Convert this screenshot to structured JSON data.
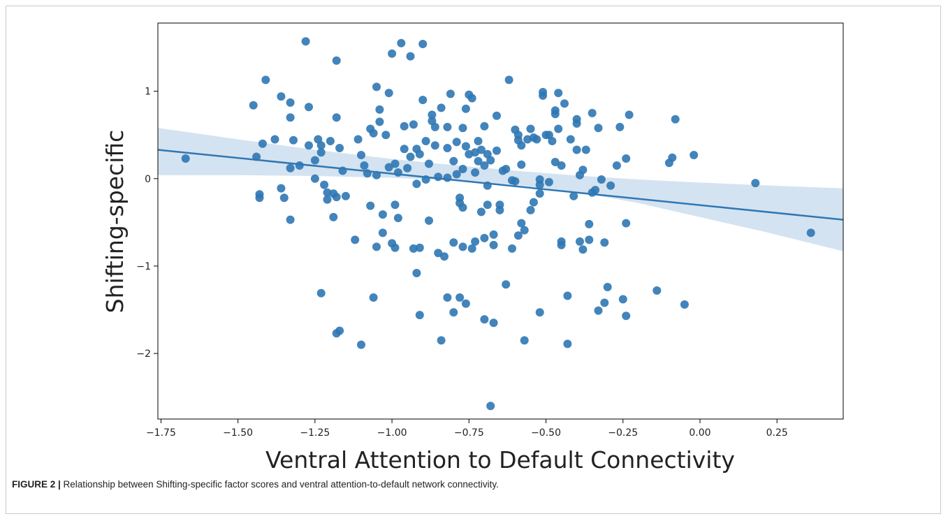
{
  "figure": {
    "caption_label": "FIGURE 2 |",
    "caption_text": " Relationship between Shifting-specific factor scores and ventral attention-to-default network connectivity."
  },
  "colors": {
    "point": "#2f77b4",
    "line": "#2f77b4",
    "band": "#c6d9ec"
  },
  "chart_data": {
    "type": "scatter",
    "xlabel": "Ventral Attention to Default Connectivity",
    "ylabel": "Shifting-specific",
    "xlim": [
      -1.76,
      0.465
    ],
    "ylim": [
      -2.75,
      1.78
    ],
    "xticks": [
      -1.75,
      -1.5,
      -1.25,
      -1.0,
      -0.75,
      -0.5,
      -0.25,
      0.0,
      0.25
    ],
    "xtick_labels": [
      "−1.75",
      "−1.50",
      "−1.25",
      "−1.00",
      "−0.75",
      "−0.50",
      "−0.25",
      "0.00",
      "0.25"
    ],
    "yticks": [
      1,
      0,
      -1,
      -2
    ],
    "ytick_labels": [
      "1",
      "0",
      "−1",
      "−2"
    ],
    "regression": {
      "x": [
        -1.76,
        0.465
      ],
      "y": [
        0.33,
        -0.47
      ]
    },
    "confidence_band": {
      "x": [
        -1.76,
        -1.5,
        -1.25,
        -1.0,
        -0.8,
        -0.6,
        -0.4,
        -0.2,
        0.0,
        0.2,
        0.465
      ],
      "upper": [
        0.58,
        0.45,
        0.33,
        0.225,
        0.155,
        0.09,
        0.035,
        -0.01,
        -0.045,
        -0.075,
        -0.11
      ],
      "lower": [
        0.04,
        0.04,
        0.03,
        0.01,
        -0.02,
        -0.07,
        -0.15,
        -0.28,
        -0.44,
        -0.6,
        -0.83
      ]
    },
    "grid": false,
    "legend": "none",
    "points": [
      [
        -1.67,
        0.23
      ],
      [
        -1.45,
        0.84
      ],
      [
        -1.44,
        0.25
      ],
      [
        -1.43,
        -0.18
      ],
      [
        -1.43,
        -0.22
      ],
      [
        -1.42,
        0.4
      ],
      [
        -1.41,
        1.13
      ],
      [
        -1.38,
        0.45
      ],
      [
        -1.36,
        0.94
      ],
      [
        -1.36,
        -0.11
      ],
      [
        -1.35,
        -0.22
      ],
      [
        -1.33,
        0.87
      ],
      [
        -1.33,
        0.7
      ],
      [
        -1.33,
        0.12
      ],
      [
        -1.33,
        -0.47
      ],
      [
        -1.32,
        0.44
      ],
      [
        -1.3,
        0.15
      ],
      [
        -1.28,
        1.57
      ],
      [
        -1.27,
        0.82
      ],
      [
        -1.27,
        0.38
      ],
      [
        -1.25,
        0.21
      ],
      [
        -1.25,
        0.0
      ],
      [
        -1.24,
        0.45
      ],
      [
        -1.23,
        0.38
      ],
      [
        -1.23,
        0.3
      ],
      [
        -1.23,
        -1.31
      ],
      [
        -1.22,
        -0.07
      ],
      [
        -1.21,
        -0.16
      ],
      [
        -1.21,
        -0.24
      ],
      [
        -1.2,
        0.43
      ],
      [
        -1.19,
        -0.17
      ],
      [
        -1.19,
        -0.44
      ],
      [
        -1.18,
        0.7
      ],
      [
        -1.18,
        1.35
      ],
      [
        -1.18,
        -0.21
      ],
      [
        -1.17,
        0.35
      ],
      [
        -1.17,
        -1.74
      ],
      [
        -1.18,
        -1.77
      ],
      [
        -1.16,
        0.09
      ],
      [
        -1.15,
        -0.2
      ],
      [
        -1.12,
        -0.7
      ],
      [
        -1.11,
        0.45
      ],
      [
        -1.1,
        0.27
      ],
      [
        -1.1,
        -1.9
      ],
      [
        -1.09,
        0.15
      ],
      [
        -1.08,
        0.06
      ],
      [
        -1.07,
        0.57
      ],
      [
        -1.07,
        -0.31
      ],
      [
        -1.06,
        0.52
      ],
      [
        -1.06,
        -1.36
      ],
      [
        -1.05,
        1.05
      ],
      [
        -1.05,
        0.04
      ],
      [
        -1.05,
        -0.78
      ],
      [
        -1.04,
        0.65
      ],
      [
        -1.04,
        0.79
      ],
      [
        -1.03,
        -0.41
      ],
      [
        -1.03,
        -0.62
      ],
      [
        -1.02,
        0.5
      ],
      [
        -1.01,
        0.98
      ],
      [
        -1.01,
        0.13
      ],
      [
        -1.0,
        -0.74
      ],
      [
        -1.0,
        1.43
      ],
      [
        -0.99,
        0.17
      ],
      [
        -0.99,
        -0.3
      ],
      [
        -0.99,
        -0.79
      ],
      [
        -0.98,
        0.07
      ],
      [
        -0.98,
        -0.45
      ],
      [
        -0.97,
        1.55
      ],
      [
        -0.96,
        0.34
      ],
      [
        -0.96,
        0.6
      ],
      [
        -0.95,
        0.12
      ],
      [
        -0.94,
        0.25
      ],
      [
        -0.94,
        1.4
      ],
      [
        -0.93,
        0.62
      ],
      [
        -0.93,
        -0.8
      ],
      [
        -0.92,
        0.34
      ],
      [
        -0.92,
        -0.06
      ],
      [
        -0.92,
        -1.08
      ],
      [
        -0.91,
        0.28
      ],
      [
        -0.91,
        -0.79
      ],
      [
        -0.91,
        -1.56
      ],
      [
        -0.9,
        1.54
      ],
      [
        -0.9,
        0.9
      ],
      [
        -0.89,
        0.43
      ],
      [
        -0.89,
        -0.01
      ],
      [
        -0.88,
        -0.48
      ],
      [
        -0.88,
        0.17
      ],
      [
        -0.87,
        0.73
      ],
      [
        -0.87,
        0.66
      ],
      [
        -0.86,
        0.59
      ],
      [
        -0.86,
        0.38
      ],
      [
        -0.85,
        0.02
      ],
      [
        -0.85,
        -0.85
      ],
      [
        -0.84,
        0.81
      ],
      [
        -0.84,
        -1.85
      ],
      [
        -0.83,
        -0.89
      ],
      [
        -0.82,
        0.59
      ],
      [
        -0.82,
        0.35
      ],
      [
        -0.82,
        0.01
      ],
      [
        -0.82,
        -1.36
      ],
      [
        -0.81,
        0.97
      ],
      [
        -0.8,
        0.2
      ],
      [
        -0.8,
        -0.73
      ],
      [
        -0.8,
        -1.53
      ],
      [
        -0.79,
        0.42
      ],
      [
        -0.79,
        0.05
      ],
      [
        -0.78,
        -0.22
      ],
      [
        -0.78,
        -0.28
      ],
      [
        -0.78,
        -1.36
      ],
      [
        -0.77,
        0.58
      ],
      [
        -0.77,
        0.11
      ],
      [
        -0.77,
        -0.33
      ],
      [
        -0.77,
        -0.78
      ],
      [
        -0.76,
        0.8
      ],
      [
        -0.76,
        0.37
      ],
      [
        -0.76,
        -1.43
      ],
      [
        -0.75,
        0.96
      ],
      [
        -0.75,
        0.28
      ],
      [
        -0.74,
        0.92
      ],
      [
        -0.74,
        -0.8
      ],
      [
        -0.73,
        0.3
      ],
      [
        -0.73,
        0.07
      ],
      [
        -0.73,
        -0.72
      ],
      [
        -0.72,
        0.43
      ],
      [
        -0.72,
        0.2
      ],
      [
        -0.71,
        0.33
      ],
      [
        -0.71,
        -0.38
      ],
      [
        -0.7,
        0.6
      ],
      [
        -0.7,
        0.15
      ],
      [
        -0.7,
        -0.68
      ],
      [
        -0.7,
        -1.61
      ],
      [
        -0.69,
        0.28
      ],
      [
        -0.69,
        -0.08
      ],
      [
        -0.69,
        -0.3
      ],
      [
        -0.68,
        0.21
      ],
      [
        -0.68,
        -2.6
      ],
      [
        -0.67,
        -0.64
      ],
      [
        -0.67,
        -0.76
      ],
      [
        -0.67,
        -1.65
      ],
      [
        -0.66,
        0.72
      ],
      [
        -0.66,
        0.32
      ],
      [
        -0.65,
        -0.36
      ],
      [
        -0.65,
        -0.3
      ],
      [
        -0.64,
        0.09
      ],
      [
        -0.63,
        0.11
      ],
      [
        -0.63,
        -1.21
      ],
      [
        -0.62,
        1.13
      ],
      [
        -0.61,
        -0.02
      ],
      [
        -0.61,
        -0.8
      ],
      [
        -0.6,
        0.56
      ],
      [
        -0.6,
        -0.03
      ],
      [
        -0.59,
        0.5
      ],
      [
        -0.59,
        0.44
      ],
      [
        -0.59,
        -0.65
      ],
      [
        -0.58,
        0.38
      ],
      [
        -0.58,
        0.16
      ],
      [
        -0.58,
        -0.51
      ],
      [
        -0.57,
        -0.59
      ],
      [
        -0.57,
        -1.85
      ],
      [
        -0.56,
        0.45
      ],
      [
        -0.55,
        0.57
      ],
      [
        -0.55,
        -0.36
      ],
      [
        -0.54,
        0.47
      ],
      [
        -0.54,
        -0.27
      ],
      [
        -0.53,
        0.45
      ],
      [
        -0.52,
        -0.01
      ],
      [
        -0.52,
        -0.07
      ],
      [
        -0.52,
        -0.17
      ],
      [
        -0.52,
        -1.53
      ],
      [
        -0.51,
        0.95
      ],
      [
        -0.51,
        0.99
      ],
      [
        -0.5,
        0.5
      ],
      [
        -0.49,
        0.5
      ],
      [
        -0.49,
        -0.04
      ],
      [
        -0.48,
        0.43
      ],
      [
        -0.47,
        0.19
      ],
      [
        -0.47,
        0.74
      ],
      [
        -0.47,
        0.78
      ],
      [
        -0.46,
        0.98
      ],
      [
        -0.46,
        0.57
      ],
      [
        -0.45,
        0.15
      ],
      [
        -0.45,
        -0.72
      ],
      [
        -0.45,
        -0.76
      ],
      [
        -0.44,
        0.86
      ],
      [
        -0.43,
        -1.34
      ],
      [
        -0.43,
        -1.89
      ],
      [
        -0.42,
        0.45
      ],
      [
        -0.41,
        -0.2
      ],
      [
        -0.4,
        0.68
      ],
      [
        -0.4,
        0.63
      ],
      [
        -0.4,
        0.33
      ],
      [
        -0.39,
        0.04
      ],
      [
        -0.39,
        -0.72
      ],
      [
        -0.38,
        0.1
      ],
      [
        -0.38,
        -0.81
      ],
      [
        -0.37,
        0.33
      ],
      [
        -0.36,
        -0.7
      ],
      [
        -0.36,
        -0.52
      ],
      [
        -0.35,
        0.75
      ],
      [
        -0.35,
        -0.16
      ],
      [
        -0.34,
        -0.13
      ],
      [
        -0.33,
        -1.51
      ],
      [
        -0.33,
        0.58
      ],
      [
        -0.32,
        -0.01
      ],
      [
        -0.31,
        -1.42
      ],
      [
        -0.31,
        -0.73
      ],
      [
        -0.3,
        -1.24
      ],
      [
        -0.29,
        -0.08
      ],
      [
        -0.27,
        0.15
      ],
      [
        -0.26,
        0.59
      ],
      [
        -0.25,
        -1.38
      ],
      [
        -0.24,
        -0.51
      ],
      [
        -0.24,
        0.23
      ],
      [
        -0.24,
        -1.57
      ],
      [
        -0.23,
        0.73
      ],
      [
        -0.14,
        -1.28
      ],
      [
        -0.1,
        0.18
      ],
      [
        -0.09,
        0.24
      ],
      [
        -0.08,
        0.68
      ],
      [
        -0.05,
        -1.44
      ],
      [
        -0.02,
        0.27
      ],
      [
        0.18,
        -0.05
      ],
      [
        0.36,
        -0.62
      ]
    ]
  }
}
